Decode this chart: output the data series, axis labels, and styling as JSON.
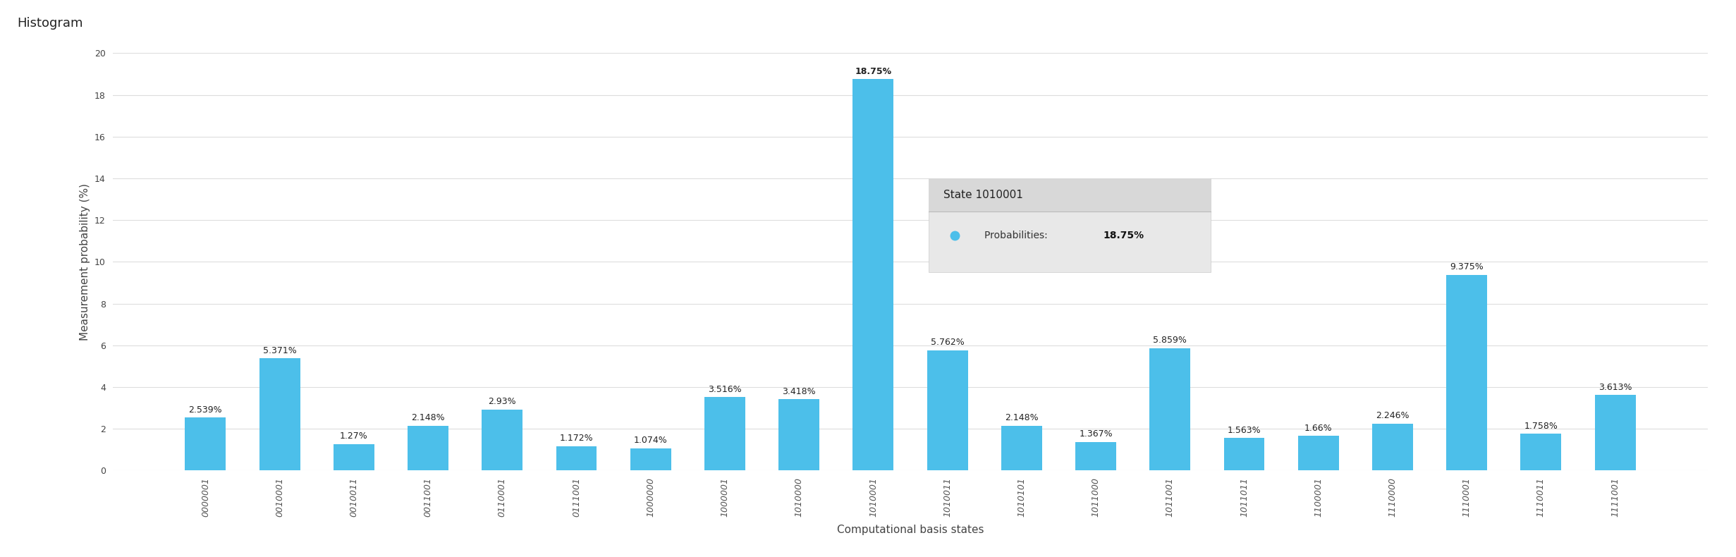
{
  "title": "Histogram",
  "xlabel": "Computational basis states",
  "ylabel": "Measurement probability (%)",
  "categories": [
    "0000001",
    "0010001",
    "0010011",
    "0011001",
    "0110001",
    "0111001",
    "1000000",
    "1000001",
    "1010000",
    "1010001",
    "1010011",
    "1010101",
    "1011000",
    "1011001",
    "1011011",
    "1100001",
    "1110000",
    "1110001",
    "1110011",
    "1111001"
  ],
  "values": [
    2.539,
    5.371,
    1.27,
    2.148,
    2.93,
    1.172,
    1.074,
    3.516,
    3.418,
    18.75,
    5.762,
    2.148,
    1.367,
    5.859,
    1.563,
    1.66,
    2.246,
    9.375,
    1.758,
    3.613
  ],
  "labels": [
    "2.539%",
    "5.371%",
    "1.27%",
    "2.148%",
    "2.93%",
    "1.172%",
    "1.074%",
    "3.516%",
    "3.418%",
    "18.75%",
    "5.762%",
    "2.148%",
    "1.367%",
    "5.859%",
    "1.563%",
    "1.66%",
    "2.246%",
    "9.375%",
    "1.758%",
    "3.613%"
  ],
  "bar_color": "#4CBFEA",
  "highlight_index": 9,
  "tooltip_state": "State 1010001",
  "tooltip_prob_label": "Probabilities: ",
  "tooltip_prob_value": "18.75%",
  "ylim": [
    0,
    20
  ],
  "yticks": [
    0,
    2,
    4,
    6,
    8,
    10,
    12,
    14,
    16,
    18,
    20
  ],
  "background_color": "#ffffff",
  "grid_color": "#dddddd",
  "title_fontsize": 13,
  "label_fontsize": 11,
  "tick_fontsize": 9,
  "bar_label_fontsize": 9
}
